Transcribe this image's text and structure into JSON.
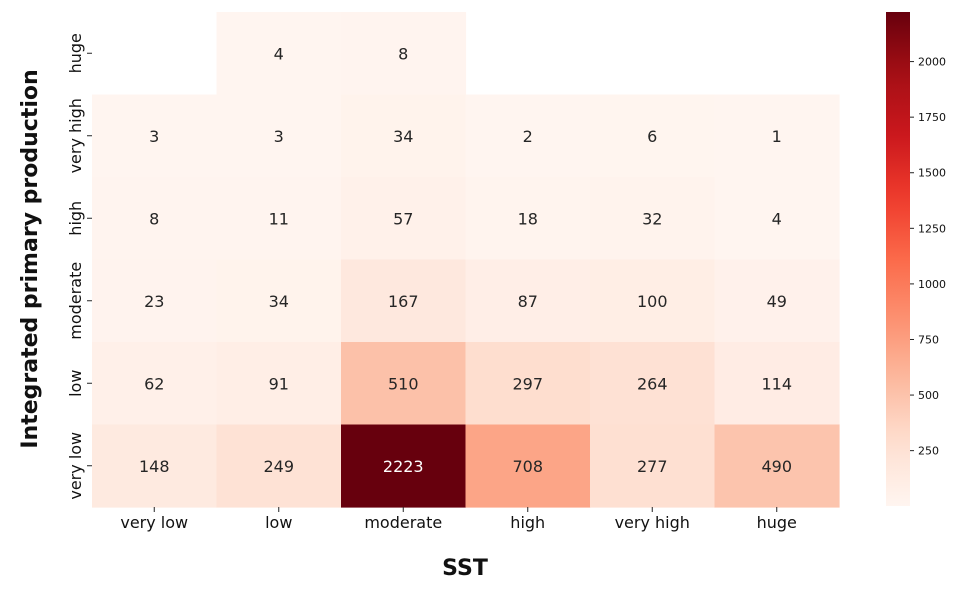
{
  "chart_data": {
    "type": "heatmap",
    "xlabel": "SST",
    "ylabel": "Integrated primary production",
    "x_categories": [
      "very low",
      "low",
      "moderate",
      "high",
      "very high",
      "huge"
    ],
    "y_categories": [
      "huge",
      "very high",
      "high",
      "moderate",
      "low",
      "very low"
    ],
    "values": [
      [
        null,
        4,
        8,
        null,
        null,
        null
      ],
      [
        3,
        3,
        34,
        2,
        6,
        1
      ],
      [
        8,
        11,
        57,
        18,
        32,
        4
      ],
      [
        23,
        34,
        167,
        87,
        100,
        49
      ],
      [
        62,
        91,
        510,
        297,
        264,
        114
      ],
      [
        148,
        249,
        2223,
        708,
        277,
        490
      ]
    ],
    "colorbar": {
      "min": 1,
      "max": 2223,
      "ticks": [
        250,
        500,
        750,
        1000,
        1250,
        1500,
        1750,
        2000
      ],
      "colormap": "Reds"
    }
  }
}
